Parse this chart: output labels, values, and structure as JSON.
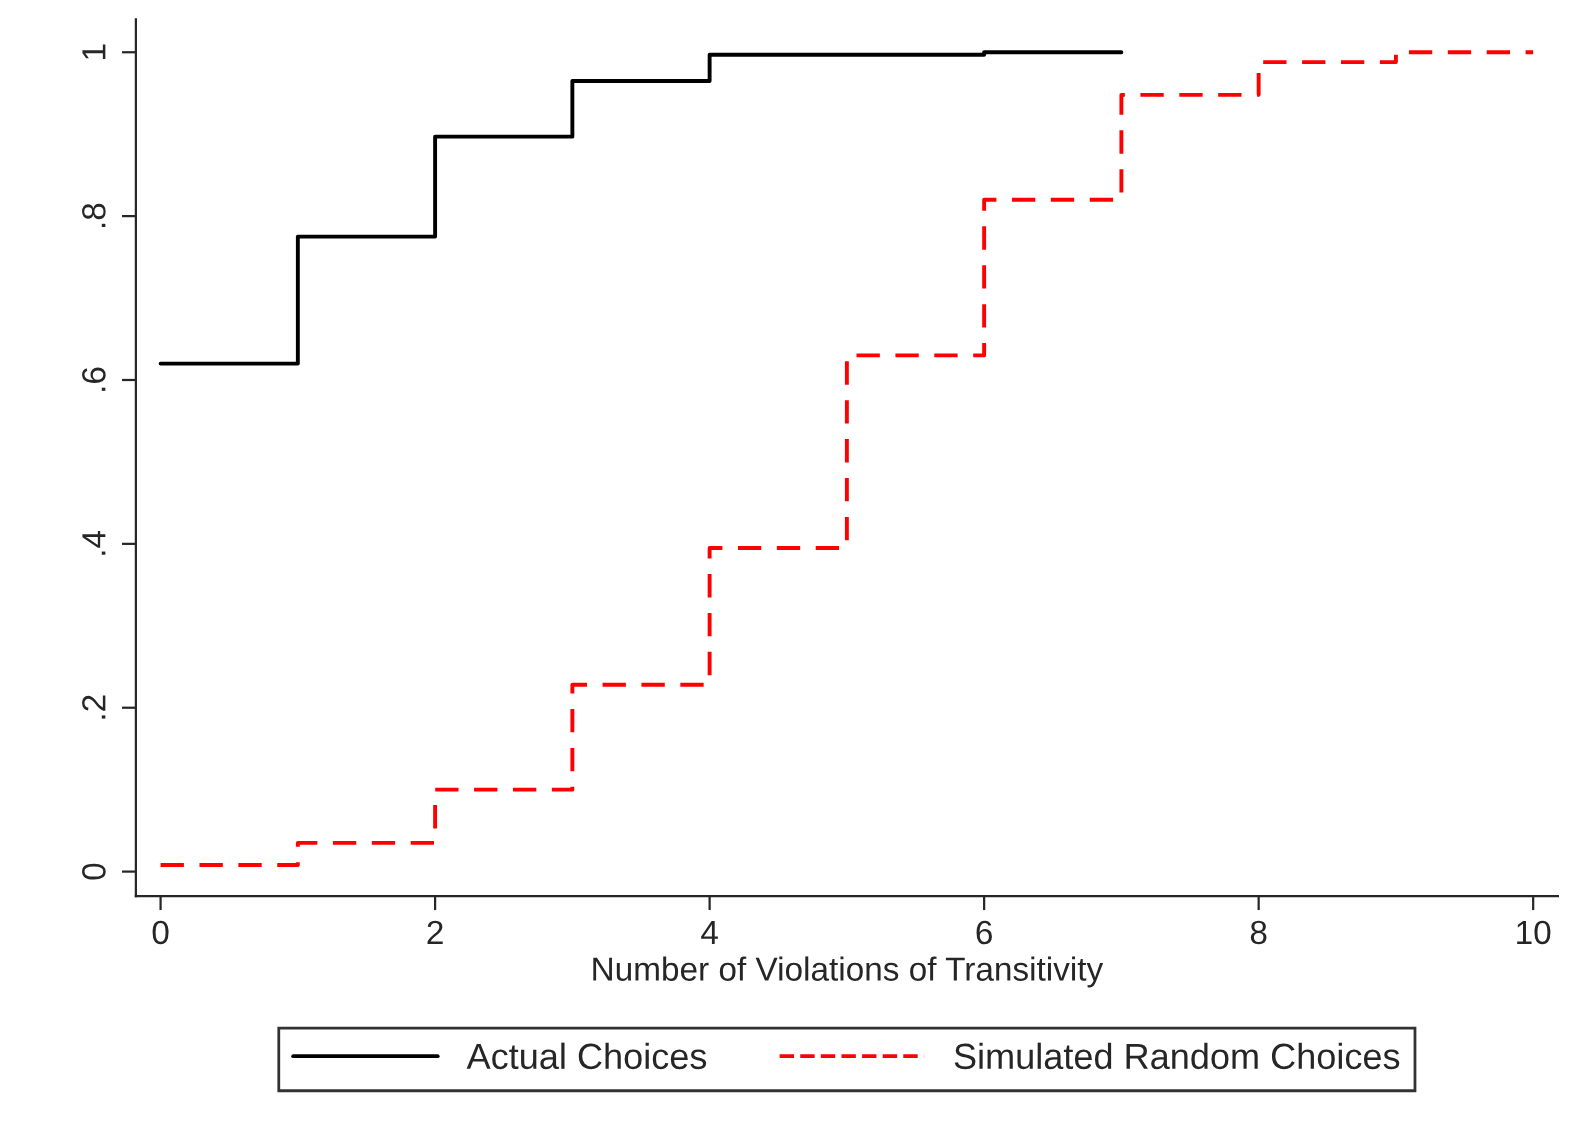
{
  "chart_data": {
    "type": "step",
    "xlabel": "Number of Violations of Transitivity",
    "series": [
      {
        "name": "Actual Choices",
        "color": "#000000",
        "line_style": "solid",
        "x": [
          0,
          1,
          2,
          3,
          4,
          5,
          6,
          7
        ],
        "values": [
          0.62,
          0.775,
          0.897,
          0.965,
          0.997,
          0.997,
          1.0,
          1.0
        ]
      },
      {
        "name": "Simulated Random Choices",
        "color": "#ff0000",
        "line_style": "dashed",
        "x": [
          0,
          1,
          2,
          3,
          4,
          5,
          6,
          7,
          8,
          9,
          10
        ],
        "values": [
          0.008,
          0.035,
          0.1,
          0.228,
          0.395,
          0.63,
          0.82,
          0.948,
          0.988,
          1.0,
          1.0
        ]
      }
    ],
    "xlim": [
      -0.18,
      10.18
    ],
    "ylim": [
      -0.03,
      1.04
    ],
    "xticks": [
      0,
      2,
      4,
      6,
      8,
      10
    ],
    "yticks": [
      {
        "value": 0,
        "label": "0"
      },
      {
        "value": 0.2,
        "label": ".2"
      },
      {
        "value": 0.4,
        "label": ".4"
      },
      {
        "value": 0.6,
        "label": ".6"
      },
      {
        "value": 0.8,
        "label": ".8"
      },
      {
        "value": 1,
        "label": "1"
      }
    ],
    "grid": false,
    "legend": "bottom"
  }
}
